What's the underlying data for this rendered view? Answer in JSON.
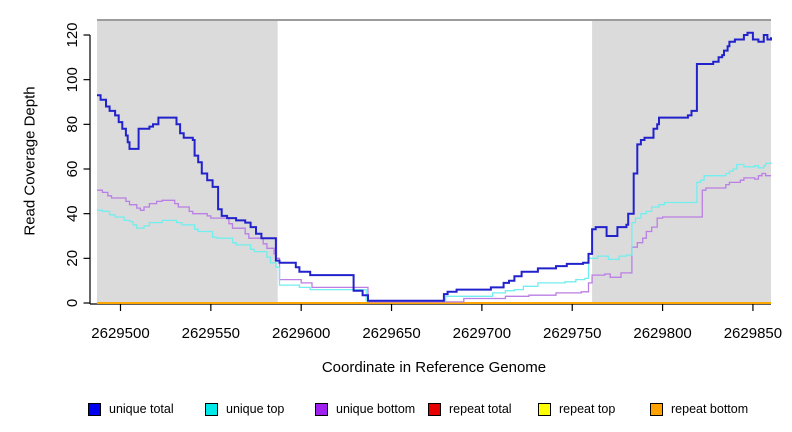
{
  "figure": {
    "background": "#ffffff"
  },
  "legend": {
    "items": [
      {
        "label": "unique total",
        "color": "#0000F0"
      },
      {
        "label": "unique top",
        "color": "#00E8E8"
      },
      {
        "label": "unique bottom",
        "color": "#A020F0"
      },
      {
        "label": "repeat total",
        "color": "#E60000"
      },
      {
        "label": "repeat top",
        "color": "#FFFF00"
      },
      {
        "label": "repeat bottom",
        "color": "#FFA200"
      }
    ]
  },
  "chart_data": {
    "type": "line",
    "style": "step",
    "title": "",
    "xlabel": "Coordinate in Reference Genome",
    "ylabel": "Read Coverage Depth",
    "xlim": [
      2629487,
      2629860
    ],
    "ylim": [
      0,
      120
    ],
    "xticks": [
      2629500,
      2629550,
      2629600,
      2629650,
      2629700,
      2629750,
      2629800,
      2629850
    ],
    "yticks": [
      0,
      20,
      40,
      60,
      80,
      100,
      120
    ],
    "grid": false,
    "legend_position": "bottom",
    "shaded_regions": [
      {
        "x0": 2629487,
        "x1": 2629587,
        "color": "#DBDBDB"
      },
      {
        "x0": 2629761,
        "x1": 2629860,
        "color": "#DBDBDB"
      }
    ],
    "region_top_border_color": "#9C9C9C",
    "series": [
      {
        "name": "repeat total",
        "color": "#DD0000",
        "width": 2,
        "points": [
          [
            2629487,
            0
          ],
          [
            2629860,
            0
          ]
        ]
      },
      {
        "name": "repeat top",
        "color": "#FFFF00",
        "width": 2,
        "points": [
          [
            2629487,
            0
          ],
          [
            2629860,
            0
          ]
        ]
      },
      {
        "name": "repeat bottom",
        "color": "#FFA500",
        "width": 2,
        "points": [
          [
            2629487,
            0
          ],
          [
            2629860,
            0
          ]
        ]
      },
      {
        "name": "unique bottom",
        "color": "#BB7EE4",
        "width": 1.3,
        "points": [
          [
            2629487,
            50.5
          ],
          [
            2629490,
            49.5
          ],
          [
            2629493,
            48
          ],
          [
            2629495,
            47
          ],
          [
            2629503,
            45.5
          ],
          [
            2629505,
            44
          ],
          [
            2629509,
            42.5
          ],
          [
            2629511,
            41.5
          ],
          [
            2629513,
            43
          ],
          [
            2629516,
            44.5
          ],
          [
            2629520,
            45.5
          ],
          [
            2629523,
            46
          ],
          [
            2629530,
            44.5
          ],
          [
            2629532,
            43
          ],
          [
            2629538,
            41
          ],
          [
            2629540,
            40
          ],
          [
            2629548,
            39
          ],
          [
            2629550,
            38
          ],
          [
            2629560,
            35.5
          ],
          [
            2629562,
            33.5
          ],
          [
            2629569,
            31
          ],
          [
            2629571,
            29
          ],
          [
            2629579,
            26.5
          ],
          [
            2629581,
            24.5
          ],
          [
            2629585,
            22
          ],
          [
            2629586,
            20
          ],
          [
            2629588,
            10.5
          ],
          [
            2629600,
            9
          ],
          [
            2629606,
            7
          ],
          [
            2629637,
            0.5
          ],
          [
            2629688,
            0.5
          ],
          [
            2629690,
            2
          ],
          [
            2629713,
            3
          ],
          [
            2629726,
            3.5
          ],
          [
            2629741,
            4.5
          ],
          [
            2629755,
            5
          ],
          [
            2629759,
            9
          ],
          [
            2629761,
            12.5
          ],
          [
            2629768,
            13
          ],
          [
            2629771,
            11.5
          ],
          [
            2629777,
            13.5
          ],
          [
            2629783,
            25
          ],
          [
            2629786,
            27
          ],
          [
            2629789,
            29
          ],
          [
            2629791,
            32
          ],
          [
            2629794,
            34
          ],
          [
            2629797,
            38
          ],
          [
            2629800,
            38.5
          ],
          [
            2629821,
            38.5
          ],
          [
            2629822,
            50.5
          ],
          [
            2629824,
            51.5
          ],
          [
            2629835,
            53
          ],
          [
            2629837,
            54
          ],
          [
            2629843,
            55
          ],
          [
            2629845,
            56
          ],
          [
            2629851,
            55.5
          ],
          [
            2629853,
            57
          ],
          [
            2629855,
            58
          ],
          [
            2629857,
            57
          ],
          [
            2629860,
            57
          ]
        ]
      },
      {
        "name": "unique top",
        "color": "#73EEEE",
        "width": 1.3,
        "points": [
          [
            2629487,
            41.5
          ],
          [
            2629490,
            41
          ],
          [
            2629494,
            39.5
          ],
          [
            2629497,
            38.5
          ],
          [
            2629502,
            37
          ],
          [
            2629505,
            36.5
          ],
          [
            2629507,
            35
          ],
          [
            2629509,
            33.5
          ],
          [
            2629513,
            34.5
          ],
          [
            2629516,
            36
          ],
          [
            2629523,
            37
          ],
          [
            2629531,
            36
          ],
          [
            2629534,
            35
          ],
          [
            2629541,
            33
          ],
          [
            2629543,
            32
          ],
          [
            2629551,
            29.5
          ],
          [
            2629553,
            29
          ],
          [
            2629562,
            27
          ],
          [
            2629564,
            26
          ],
          [
            2629572,
            24
          ],
          [
            2629574,
            23
          ],
          [
            2629581,
            20.5
          ],
          [
            2629583,
            18
          ],
          [
            2629586,
            16
          ],
          [
            2629588,
            8
          ],
          [
            2629599,
            7
          ],
          [
            2629605,
            6
          ],
          [
            2629636,
            1
          ],
          [
            2629678,
            1
          ],
          [
            2629680,
            3
          ],
          [
            2629706,
            4.5
          ],
          [
            2629713,
            5.5
          ],
          [
            2629718,
            6
          ],
          [
            2629723,
            7.5
          ],
          [
            2629731,
            9
          ],
          [
            2629746,
            9.5
          ],
          [
            2629752,
            10.5
          ],
          [
            2629757,
            11
          ],
          [
            2629759,
            20
          ],
          [
            2629764,
            21
          ],
          [
            2629770,
            19.5
          ],
          [
            2629776,
            21
          ],
          [
            2629780,
            21.5
          ],
          [
            2629783,
            36
          ],
          [
            2629785,
            38
          ],
          [
            2629788,
            40
          ],
          [
            2629791,
            41
          ],
          [
            2629794,
            43
          ],
          [
            2629798,
            44
          ],
          [
            2629801,
            45
          ],
          [
            2629817,
            45
          ],
          [
            2629819,
            54
          ],
          [
            2629821,
            55
          ],
          [
            2629823,
            57
          ],
          [
            2629835,
            58
          ],
          [
            2629837,
            59
          ],
          [
            2629839,
            60
          ],
          [
            2629841,
            62
          ],
          [
            2629845,
            61
          ],
          [
            2629851,
            61.5
          ],
          [
            2629853,
            60.5
          ],
          [
            2629856,
            61.5
          ],
          [
            2629857,
            62.5
          ],
          [
            2629860,
            63
          ]
        ]
      },
      {
        "name": "unique total",
        "color": "#2222CC",
        "width": 2,
        "points": [
          [
            2629487,
            93
          ],
          [
            2629489,
            91
          ],
          [
            2629492,
            88
          ],
          [
            2629494,
            86
          ],
          [
            2629497,
            84
          ],
          [
            2629499,
            81
          ],
          [
            2629501,
            78
          ],
          [
            2629503,
            75
          ],
          [
            2629504,
            72
          ],
          [
            2629505,
            69
          ],
          [
            2629510,
            78
          ],
          [
            2629516,
            79
          ],
          [
            2629518,
            80
          ],
          [
            2629521,
            83
          ],
          [
            2629529,
            83
          ],
          [
            2629531,
            80
          ],
          [
            2629533,
            76
          ],
          [
            2629535,
            74
          ],
          [
            2629540,
            73
          ],
          [
            2629541,
            66
          ],
          [
            2629543,
            63
          ],
          [
            2629545,
            58
          ],
          [
            2629548,
            55
          ],
          [
            2629551,
            52
          ],
          [
            2629554,
            42
          ],
          [
            2629556,
            39
          ],
          [
            2629559,
            38
          ],
          [
            2629564,
            37
          ],
          [
            2629569,
            36
          ],
          [
            2629572,
            34
          ],
          [
            2629575,
            31
          ],
          [
            2629578,
            29
          ],
          [
            2629585,
            29
          ],
          [
            2629586,
            19
          ],
          [
            2629588,
            18
          ],
          [
            2629597,
            16
          ],
          [
            2629599,
            14
          ],
          [
            2629605,
            12.5
          ],
          [
            2629629,
            5.5
          ],
          [
            2629634,
            3.5
          ],
          [
            2629637,
            1
          ],
          [
            2629677,
            1
          ],
          [
            2629679,
            4
          ],
          [
            2629681,
            5
          ],
          [
            2629686,
            6
          ],
          [
            2629705,
            7
          ],
          [
            2629712,
            9
          ],
          [
            2629715,
            10
          ],
          [
            2629718,
            12
          ],
          [
            2629722,
            14
          ],
          [
            2629731,
            15.5
          ],
          [
            2629741,
            16.5
          ],
          [
            2629747,
            17.5
          ],
          [
            2629756,
            18
          ],
          [
            2629759,
            22
          ],
          [
            2629761,
            33
          ],
          [
            2629763,
            34
          ],
          [
            2629769,
            30
          ],
          [
            2629775,
            34
          ],
          [
            2629780,
            35
          ],
          [
            2629781,
            40
          ],
          [
            2629784,
            58
          ],
          [
            2629786,
            71
          ],
          [
            2629788,
            73
          ],
          [
            2629790,
            74
          ],
          [
            2629795,
            78
          ],
          [
            2629797,
            80
          ],
          [
            2629798,
            83
          ],
          [
            2629814,
            84
          ],
          [
            2629816,
            86
          ],
          [
            2629819,
            107
          ],
          [
            2629828,
            108
          ],
          [
            2629831,
            110
          ],
          [
            2629833,
            111
          ],
          [
            2629834,
            113
          ],
          [
            2629836,
            115
          ],
          [
            2629837,
            117
          ],
          [
            2629840,
            118
          ],
          [
            2629845,
            120
          ],
          [
            2629847,
            121
          ],
          [
            2629850,
            118
          ],
          [
            2629853,
            117
          ],
          [
            2629856,
            120
          ],
          [
            2629858,
            118
          ],
          [
            2629860,
            119
          ]
        ]
      }
    ]
  }
}
